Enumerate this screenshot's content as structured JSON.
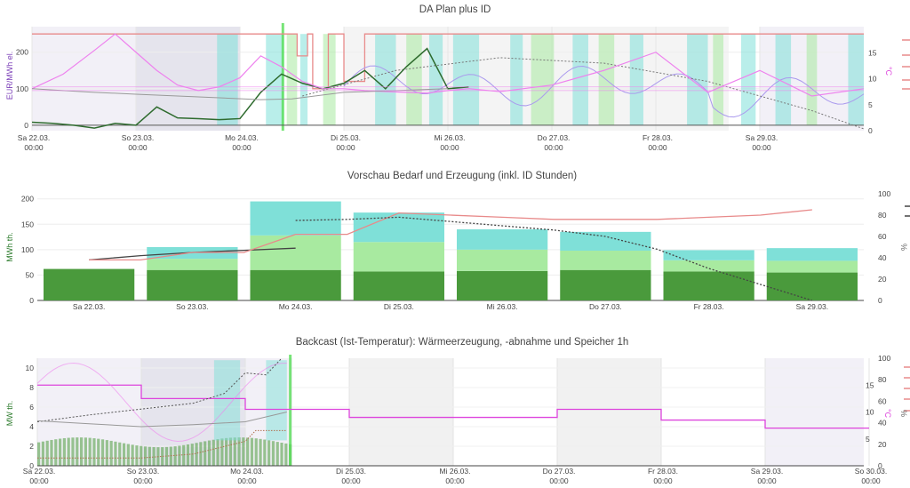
{
  "colors": {
    "price_green": "#2e6b2e",
    "pink_line": "#ee82ee",
    "gray_line": "#999999",
    "red_line": "#e88a8a",
    "blue_line": "#aa99ee",
    "teal_bar": "#7fe0d8",
    "light_green_bar": "#a8eaa0",
    "dark_green_bar": "#4a9a3c",
    "dark_line": "#444444",
    "shade": "#ece9f4",
    "purple_axis": "#7b3fb8",
    "green_axis": "#2a7a2a",
    "pink_axis": "#dd44dd",
    "neon_green": "#55dd55"
  },
  "charts": [
    {
      "id": "da-plan",
      "title": "DA Plan plus ID",
      "ylabel_left": "EUR/MWh el.",
      "ylabel_right": "°C",
      "y_left_ticks": [
        "0",
        "100",
        "200"
      ],
      "y_right_ticks": [
        "0",
        "5",
        "10",
        "15"
      ],
      "x_ticks": [
        {
          "day": "Sa 22.03.",
          "time": "00:00"
        },
        {
          "day": "So 23.03.",
          "time": "00:00"
        },
        {
          "day": "Mo 24.03.",
          "time": "00:00"
        },
        {
          "day": "Di 25.03.",
          "time": "00:00"
        },
        {
          "day": "Mi 26.03.",
          "time": "00:00"
        },
        {
          "day": "Do 27.03.",
          "time": "00:00"
        },
        {
          "day": "Fr 28.03.",
          "time": "00:00"
        },
        {
          "day": "Sa 29.03.",
          "time": "00:00"
        }
      ]
    },
    {
      "id": "vorschau",
      "title": "Vorschau Bedarf und Erzeugung (inkl. ID Stunden)",
      "ylabel_left": "MWh th.",
      "ylabel_right": "%",
      "y_left_ticks": [
        "0",
        "50",
        "100",
        "150",
        "200"
      ],
      "y_right_ticks": [
        "0",
        "20",
        "40",
        "60",
        "80",
        "100"
      ],
      "x_ticks": [
        "Sa 22.03.",
        "So 23.03.",
        "Mo 24.03.",
        "Di 25.03.",
        "Mi 26.03.",
        "Do 27.03.",
        "Fr 28.03.",
        "Sa 29.03."
      ]
    },
    {
      "id": "backcast",
      "title": "Backcast (Ist-Temperatur): Wärmeerzeugung, -abnahme und Speicher 1h",
      "ylabel_left": "MW th.",
      "ylabel_right_1": "°C",
      "ylabel_right_2": "%",
      "y_left_ticks": [
        "0",
        "2",
        "4",
        "6",
        "8",
        "10"
      ],
      "y_right1_ticks": [
        "5",
        "10",
        "15"
      ],
      "y_right2_ticks": [
        "0",
        "20",
        "40",
        "60",
        "80",
        "100"
      ],
      "x_ticks": [
        {
          "day": "Sa 22.03.",
          "time": "00:00"
        },
        {
          "day": "So 23.03.",
          "time": "00:00"
        },
        {
          "day": "Mo 24.03.",
          "time": "00:00"
        },
        {
          "day": "Di 25.03.",
          "time": "00:00"
        },
        {
          "day": "Mi 26.03.",
          "time": "00:00"
        },
        {
          "day": "Do 27.03.",
          "time": "00:00"
        },
        {
          "day": "Fr 28.03.",
          "time": "00:00"
        },
        {
          "day": "Sa 29.03.",
          "time": "00:00"
        },
        {
          "day": "So 30.03.",
          "time": "00:00"
        }
      ]
    }
  ],
  "chart_data": [
    {
      "type": "line",
      "title": "DA Plan plus ID",
      "x_days": [
        "Sa 22.03.",
        "So 23.03.",
        "Mo 24.03.",
        "Di 25.03.",
        "Mi 26.03.",
        "Do 27.03.",
        "Fr 28.03.",
        "Sa 29.03."
      ],
      "y_left_range": [
        -15,
        270
      ],
      "y_right_range": [
        0,
        20
      ],
      "series": [
        {
          "color": "#2e6b2e",
          "axis": "left",
          "x_day": [
            0,
            0.2,
            0.4,
            0.6,
            0.8,
            1,
            1.2,
            1.4,
            1.6,
            1.8,
            2,
            2.2,
            2.4,
            2.6,
            2.8,
            3,
            3.2,
            3.4,
            3.6,
            3.8,
            4,
            4.2
          ],
          "values": [
            8,
            5,
            0,
            -8,
            5,
            0,
            50,
            20,
            18,
            15,
            18,
            90,
            140,
            115,
            100,
            115,
            150,
            100,
            160,
            210,
            100,
            105
          ]
        },
        {
          "color": "#ee82ee",
          "axis": "left",
          "x_day": [
            0,
            0.3,
            0.6,
            0.8,
            1,
            1.2,
            1.4,
            1.6,
            1.8,
            2,
            2.2,
            2.4,
            2.6,
            2.8,
            3,
            3.2,
            3.4,
            3.6,
            3.8,
            4,
            4.2,
            4.5,
            5,
            5.5,
            6,
            6.5,
            7,
            7.5,
            8
          ],
          "values": [
            100,
            140,
            205,
            250,
            200,
            150,
            110,
            95,
            105,
            130,
            190,
            160,
            120,
            100,
            100,
            95,
            92,
            90,
            88,
            95,
            100,
            92,
            110,
            150,
            200,
            90,
            150,
            80,
            100
          ]
        },
        {
          "color": "#999999",
          "axis": "left",
          "x_day": [
            0,
            0.3,
            0.6,
            1,
            1.4,
            1.8,
            2.2,
            2.5,
            3,
            3.5,
            4
          ],
          "values": [
            100,
            95,
            90,
            85,
            80,
            75,
            70,
            72,
            90,
            95,
            100
          ]
        }
      ]
    },
    {
      "type": "bar",
      "title": "Vorschau Bedarf und Erzeugung (inkl. ID Stunden)",
      "categories": [
        "Sa 22.03.",
        "So 23.03.",
        "Mo 24.03.",
        "Di 25.03.",
        "Mi 26.03.",
        "Do 27.03.",
        "Fr 28.03.",
        "Sa 29.03."
      ],
      "ylim": [
        0,
        210
      ],
      "y2lim": [
        0,
        100
      ],
      "series": [
        {
          "color": "#4a9a3c",
          "values": [
            62,
            60,
            60,
            57,
            58,
            60,
            57,
            55
          ]
        },
        {
          "color": "#a8eaa0",
          "values": [
            0,
            22,
            68,
            58,
            42,
            38,
            22,
            23
          ]
        },
        {
          "color": "#7fe0d8",
          "values": [
            0,
            23,
            67,
            58,
            40,
            37,
            20,
            25
          ]
        }
      ],
      "lines": [
        {
          "color": "#444444",
          "style": "solid",
          "x_cat": [
            0,
            0.5,
            1,
            1.5,
            2.0
          ],
          "values": [
            38,
            42,
            45,
            47,
            49
          ]
        },
        {
          "color": "#e88a8a",
          "style": "solid",
          "x_cat": [
            0,
            0.5,
            1,
            1.5,
            2,
            2.5,
            3,
            3.5,
            4,
            4.5,
            5,
            5.5,
            6,
            6.5,
            7
          ],
          "values": [
            38,
            38,
            45,
            45,
            62,
            62,
            82,
            80,
            78,
            76,
            76,
            76,
            78,
            80,
            85
          ]
        },
        {
          "color": "#444444",
          "style": "dotted",
          "x_cat": [
            2,
            2.5,
            3,
            3.5,
            4,
            4.5,
            5,
            5.5,
            6,
            6.5,
            7
          ],
          "values": [
            75,
            76,
            78,
            74,
            70,
            66,
            60,
            48,
            30,
            15,
            0
          ]
        }
      ]
    },
    {
      "type": "bar",
      "title": "Backcast (Ist-Temperatur): Wärmeerzeugung, -abnahme und Speicher 1h",
      "x_days": [
        "Sa 22.03.",
        "So 23.03.",
        "Mo 24.03.",
        "Di 25.03.",
        "Mi 26.03.",
        "Do 27.03.",
        "Fr 28.03.",
        "Sa 29.03.",
        "So 30.03."
      ],
      "ylim": [
        0,
        11
      ],
      "y2lim": [
        0,
        100
      ],
      "temperature_steps": {
        "x_day": [
          0,
          1,
          1,
          2,
          2,
          3,
          3,
          4,
          4,
          5,
          5,
          6,
          6,
          7,
          7,
          8
        ],
        "values_celsius": [
          15,
          15,
          12.5,
          12.5,
          10.5,
          10.5,
          9.0,
          9.0,
          9.0,
          9.0,
          10.5,
          10.5,
          8.5,
          8.5,
          7.0,
          7.0
        ]
      }
    }
  ]
}
